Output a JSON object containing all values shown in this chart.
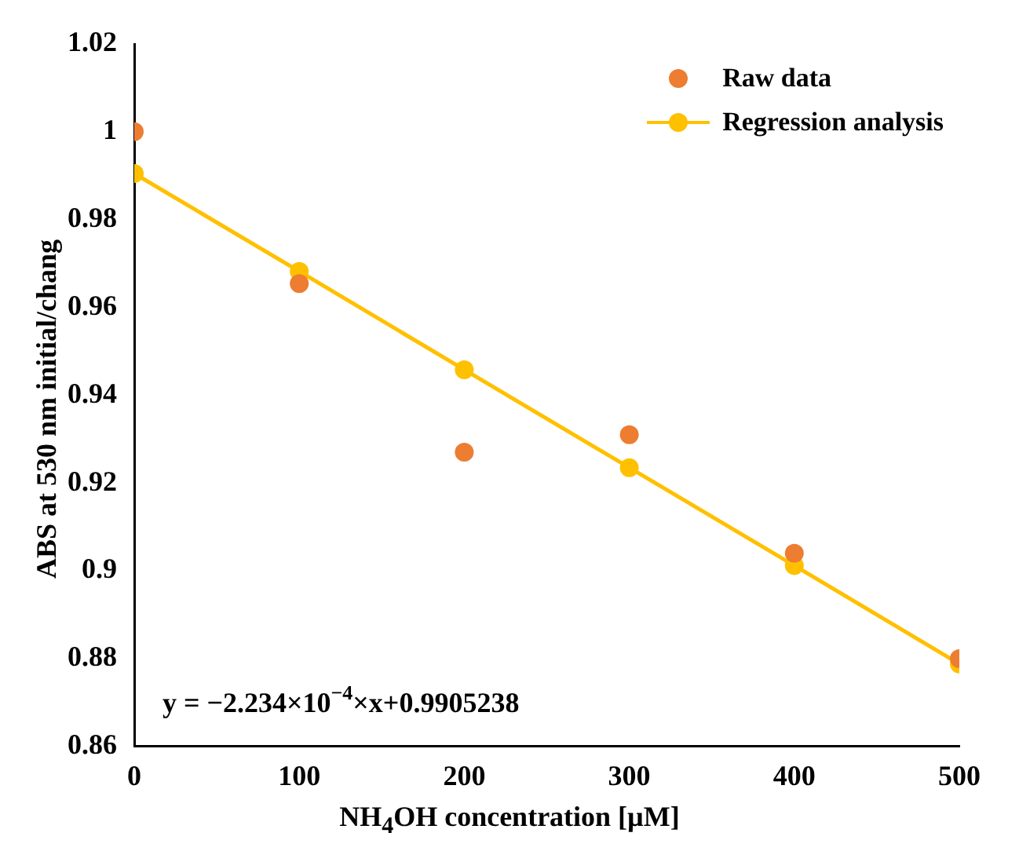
{
  "chart_data": {
    "type": "scatter",
    "xlabel": "NH$_{4}$OH concentration [µM]",
    "ylabel": "ABS at 530 nm initial/chang",
    "x": [
      0,
      100,
      200,
      300,
      400,
      500
    ],
    "series": [
      {
        "name": "Raw data",
        "color": "#ed7d31",
        "marker": "circle",
        "values": [
          1.0,
          0.9654,
          0.927,
          0.931,
          0.904,
          0.88
        ]
      },
      {
        "name": "Regression analysis",
        "type": "line",
        "color": "#ffc000",
        "marker": "circle",
        "line_style": "solid",
        "values": [
          0.9905,
          0.9682,
          0.9458,
          0.9235,
          0.9012,
          0.8788
        ]
      }
    ],
    "xlim": [
      0,
      500
    ],
    "xticks": [
      0,
      100,
      200,
      300,
      400,
      500
    ],
    "ylim": [
      0.86,
      1.02
    ],
    "yticks": [
      0.86,
      0.88,
      0.9,
      0.92,
      0.94,
      0.96,
      0.98,
      1,
      1.02
    ],
    "grid": false,
    "legend": "top right",
    "annotations": [
      "y = −2.234×10$^{−4}$×x+0.9905238"
    ]
  }
}
